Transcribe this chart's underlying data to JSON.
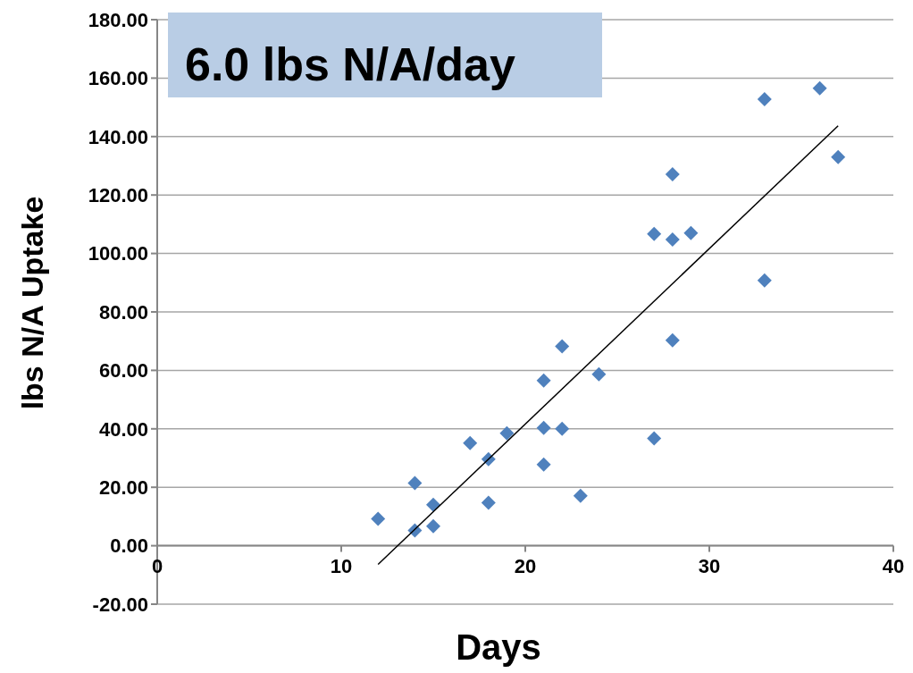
{
  "chart_data": {
    "type": "scatter",
    "title": "6.0 lbs N/A/day",
    "xlabel": "Days",
    "ylabel": "lbs N/A Uptake",
    "xlim": [
      0,
      40
    ],
    "xticks": [
      0,
      10,
      20,
      30,
      40
    ],
    "ylim": [
      -20,
      180
    ],
    "yticks": [
      {
        "value": -20,
        "label": "-20.00"
      },
      {
        "value": 0,
        "label": "0.00"
      },
      {
        "value": 20,
        "label": "20.00"
      },
      {
        "value": 40,
        "label": "40.00"
      },
      {
        "value": 60,
        "label": "60.00"
      },
      {
        "value": 80,
        "label": "80.00"
      },
      {
        "value": 100,
        "label": "100.00"
      },
      {
        "value": 120,
        "label": "120.00"
      },
      {
        "value": 140,
        "label": "140.00"
      },
      {
        "value": 160,
        "label": "160.00"
      },
      {
        "value": 180,
        "label": "180.00"
      }
    ],
    "grid": "y",
    "series": [
      {
        "color": "#4f81bd",
        "marker": "diamond",
        "x": [
          12,
          14,
          14,
          15,
          15,
          17,
          18,
          18,
          19,
          21,
          21,
          21,
          22,
          22,
          23,
          24,
          27,
          27,
          28,
          28,
          28,
          29,
          33,
          33,
          36,
          37
        ],
        "values": [
          9.2,
          21.4,
          5.2,
          14,
          6.7,
          35.1,
          29.6,
          14.7,
          38.5,
          56.5,
          40.3,
          27.8,
          68.2,
          40,
          17.1,
          58.7,
          106.7,
          36.7,
          127.1,
          104.8,
          70.3,
          107,
          152.8,
          90.8,
          156.5,
          133
        ]
      },
      {
        "type": "line",
        "color": "#000000",
        "marker": "none",
        "line_style": "solid",
        "x": [
          12,
          37
        ],
        "values": [
          -6.4,
          143.7
        ]
      }
    ]
  }
}
